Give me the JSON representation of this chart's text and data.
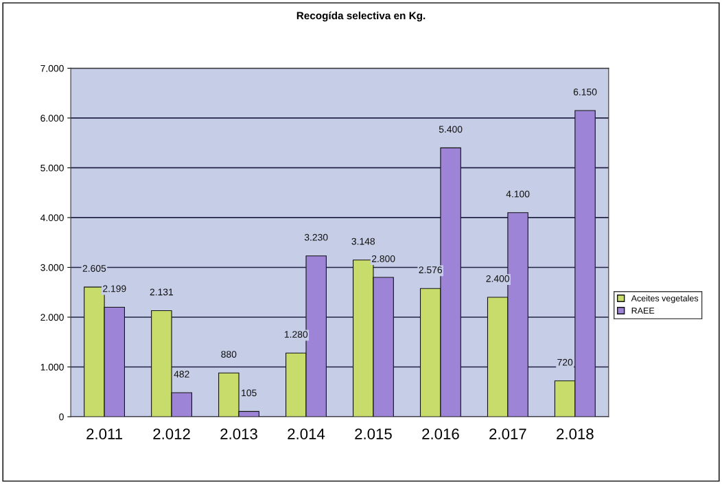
{
  "chart_data": {
    "type": "bar",
    "title": "Recogída selectiva en Kg.",
    "categories": [
      "2.011",
      "2.012",
      "2.013",
      "2.014",
      "2.015",
      "2.016",
      "2.017",
      "2.018"
    ],
    "series": [
      {
        "name": "Aceites vegetales",
        "color": "#c8dc6c",
        "values": [
          2605,
          2131,
          880,
          1280,
          3148,
          2576,
          2400,
          720
        ],
        "value_labels": [
          "2.605",
          "2.131",
          "880",
          "1.280",
          "3.148",
          "2.576",
          "2.400",
          "720"
        ]
      },
      {
        "name": "RAEE",
        "color": "#9d84d6",
        "values": [
          2199,
          482,
          105,
          3230,
          2800,
          5400,
          4100,
          6150
        ],
        "value_labels": [
          "2.199",
          "482",
          "105",
          "3.230",
          "2.800",
          "5.400",
          "4.100",
          "6.150"
        ]
      }
    ],
    "ylim": [
      0,
      7000
    ],
    "yticks": [
      0,
      {
        "value": 1000,
        "label": "1.000"
      },
      {
        "value": 2000,
        "label": "2.000"
      },
      {
        "value": 3000,
        "label": "3.000"
      },
      {
        "value": 4000,
        "label": "4.000"
      },
      {
        "value": 5000,
        "label": "5.000"
      },
      {
        "value": 6000,
        "label": "6.000"
      },
      {
        "value": 7000,
        "label": "7.000"
      }
    ],
    "grid": "y",
    "legend": "right"
  }
}
